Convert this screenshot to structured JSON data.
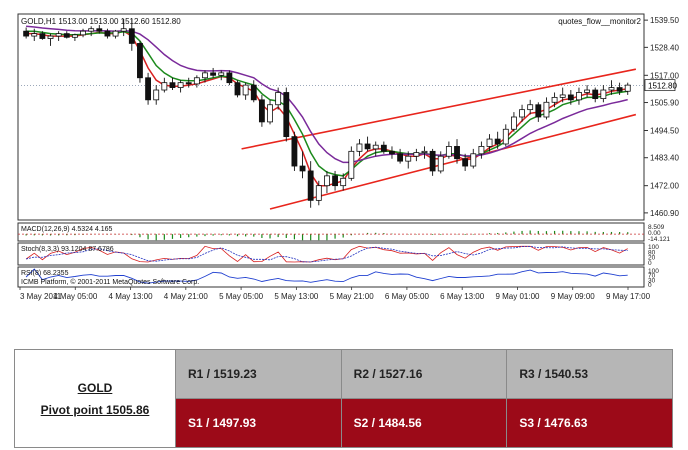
{
  "chart_data": {
    "type": "candlestick",
    "header": "GOLD,H1  1513.00 1513.00 1512.60 1512.80",
    "watermark": "quotes_flow__monitor2",
    "price_axis": {
      "ticks": [
        "1539.50",
        "1528.40",
        "1517.00",
        "1505.90",
        "1494.50",
        "1483.40",
        "1472.00",
        "1460.90"
      ],
      "ylim": [
        1458,
        1542
      ],
      "current_price_label": "1512.80",
      "current_price": 1512.8
    },
    "time_axis": [
      "3 May 2011",
      "4 May 05:00",
      "4 May 13:00",
      "4 May 21:00",
      "5 May 05:00",
      "5 May 13:00",
      "5 May 21:00",
      "6 May 05:00",
      "6 May 13:00",
      "9 May 01:00",
      "9 May 09:00",
      "9 May 17:00"
    ],
    "candles": [
      [
        1535,
        1536.5,
        1532,
        1533
      ],
      [
        1533,
        1536,
        1531,
        1534
      ],
      [
        1534,
        1535,
        1531.5,
        1532
      ],
      [
        1532,
        1534,
        1529,
        1533
      ],
      [
        1533,
        1535,
        1531,
        1534
      ],
      [
        1534,
        1535,
        1532,
        1532.5
      ],
      [
        1532.5,
        1534,
        1531,
        1533.5
      ],
      [
        1533.5,
        1536,
        1532.5,
        1535
      ],
      [
        1535,
        1537,
        1533,
        1536
      ],
      [
        1536,
        1537.5,
        1534,
        1535
      ],
      [
        1535,
        1536,
        1532,
        1533
      ],
      [
        1533,
        1535.5,
        1532,
        1535
      ],
      [
        1535,
        1540,
        1533,
        1536
      ],
      [
        1536,
        1540,
        1527,
        1530
      ],
      [
        1530,
        1531,
        1514,
        1516
      ],
      [
        1516,
        1518,
        1505,
        1507
      ],
      [
        1507,
        1513,
        1505,
        1511
      ],
      [
        1511,
        1516,
        1510,
        1514
      ],
      [
        1514,
        1516,
        1511,
        1512
      ],
      [
        1512,
        1515,
        1510,
        1514
      ],
      [
        1514,
        1516,
        1512,
        1513.5
      ],
      [
        1513.5,
        1517,
        1512,
        1516
      ],
      [
        1516,
        1519,
        1514,
        1518
      ],
      [
        1518,
        1520,
        1516,
        1517
      ],
      [
        1517,
        1519,
        1515,
        1518
      ],
      [
        1518,
        1519,
        1513,
        1514
      ],
      [
        1514,
        1515,
        1508,
        1509
      ],
      [
        1509,
        1514,
        1507,
        1513
      ],
      [
        1513,
        1515,
        1506,
        1507
      ],
      [
        1507,
        1509,
        1496,
        1498
      ],
      [
        1498,
        1507,
        1497,
        1505
      ],
      [
        1505,
        1512,
        1503,
        1510
      ],
      [
        1510,
        1512,
        1490,
        1492
      ],
      [
        1492,
        1494,
        1478,
        1480
      ],
      [
        1480,
        1486,
        1475,
        1478
      ],
      [
        1478,
        1482,
        1463,
        1466
      ],
      [
        1466,
        1474,
        1464,
        1472
      ],
      [
        1472,
        1478,
        1469,
        1476
      ],
      [
        1476,
        1478,
        1470,
        1472
      ],
      [
        1472,
        1477,
        1470,
        1475
      ],
      [
        1475,
        1488,
        1474,
        1486
      ],
      [
        1486,
        1491,
        1484,
        1489
      ],
      [
        1489,
        1492,
        1486,
        1487
      ],
      [
        1487,
        1490,
        1484,
        1488.5
      ],
      [
        1488.5,
        1490,
        1485,
        1486
      ],
      [
        1486,
        1488,
        1483,
        1485
      ],
      [
        1485,
        1487,
        1481,
        1482
      ],
      [
        1482,
        1486,
        1479,
        1484
      ],
      [
        1484,
        1487,
        1482,
        1485.5
      ],
      [
        1485.5,
        1488,
        1483,
        1486
      ],
      [
        1486,
        1487,
        1476,
        1478
      ],
      [
        1478,
        1486,
        1477,
        1484
      ],
      [
        1484,
        1490,
        1483,
        1488
      ],
      [
        1488,
        1491,
        1481,
        1483
      ],
      [
        1483,
        1485,
        1478,
        1480
      ],
      [
        1480,
        1487,
        1479,
        1485
      ],
      [
        1485,
        1490,
        1483,
        1488
      ],
      [
        1488,
        1493,
        1486,
        1491
      ],
      [
        1491,
        1494,
        1487,
        1489
      ],
      [
        1489,
        1497,
        1488,
        1495
      ],
      [
        1495,
        1502,
        1494,
        1500
      ],
      [
        1500,
        1505,
        1498,
        1503
      ],
      [
        1503,
        1507,
        1501,
        1505
      ],
      [
        1505,
        1506,
        1498,
        1500
      ],
      [
        1500,
        1508,
        1499,
        1506
      ],
      [
        1506,
        1510,
        1504,
        1508
      ],
      [
        1508,
        1512,
        1506,
        1509
      ],
      [
        1509,
        1511,
        1505,
        1507
      ],
      [
        1507,
        1512,
        1505,
        1510
      ],
      [
        1510,
        1513,
        1508,
        1511
      ],
      [
        1511,
        1512,
        1506,
        1507.5
      ],
      [
        1507.5,
        1513,
        1506,
        1511
      ],
      [
        1511,
        1515,
        1509,
        1512
      ],
      [
        1512,
        1514,
        1509,
        1510.5
      ],
      [
        1510.5,
        1514,
        1509,
        1513
      ]
    ],
    "moving_averages": [
      {
        "color": "#d82020",
        "values": [
          1534,
          1534,
          1533.5,
          1533,
          1533,
          1533,
          1533,
          1533.5,
          1534,
          1534.5,
          1534,
          1534,
          1535,
          1533,
          1527,
          1520,
          1515,
          1513,
          1512.5,
          1512.5,
          1513,
          1513.5,
          1514.5,
          1515.5,
          1516.5,
          1516,
          1513.5,
          1512,
          1510.5,
          1505,
          1502,
          1504,
          1500,
          1493,
          1486,
          1477,
          1472,
          1472,
          1473,
          1474,
          1479,
          1483,
          1486,
          1487,
          1487,
          1486,
          1485,
          1484,
          1484,
          1485,
          1483,
          1483,
          1484.5,
          1484,
          1482.5,
          1483,
          1485,
          1487.5,
          1489,
          1491.5,
          1495,
          1498.5,
          1501.5,
          1502,
          1503,
          1505,
          1507,
          1507.5,
          1508.5,
          1509.5,
          1509,
          1509.5,
          1510.5,
          1511,
          1511.5
        ]
      },
      {
        "color": "#1c8a1c",
        "values": [
          1535,
          1535,
          1534.5,
          1534,
          1533.8,
          1533.6,
          1533.5,
          1533.7,
          1534,
          1534.3,
          1534.2,
          1534.3,
          1534.8,
          1534.2,
          1531,
          1526,
          1521,
          1518,
          1516,
          1515,
          1514.8,
          1514.8,
          1515.3,
          1516,
          1516.6,
          1516.4,
          1515,
          1514,
          1513,
          1509.5,
          1507,
          1506.5,
          1504.5,
          1499,
          1493,
          1485.5,
          1480,
          1477.5,
          1476.5,
          1476,
          1478.5,
          1481.5,
          1484,
          1485.5,
          1486,
          1486,
          1485.5,
          1485,
          1485,
          1485.2,
          1484.5,
          1484.3,
          1485,
          1485,
          1484,
          1484,
          1485,
          1486.5,
          1488,
          1490,
          1493,
          1496,
          1499,
          1500.5,
          1501.5,
          1503,
          1505,
          1506,
          1507,
          1508,
          1508,
          1508.5,
          1509.5,
          1510,
          1510.5
        ]
      },
      {
        "color": "#7a2a9a",
        "values": [
          1537,
          1536.7,
          1536.3,
          1536,
          1535.7,
          1535.4,
          1535.2,
          1535.1,
          1535.1,
          1535.2,
          1535.1,
          1535,
          1535.2,
          1535,
          1533.8,
          1531.5,
          1528.5,
          1525.5,
          1523,
          1521,
          1519.8,
          1519,
          1518.8,
          1518.8,
          1518.9,
          1518.8,
          1518,
          1517,
          1516,
          1513.5,
          1511.5,
          1510.5,
          1508.5,
          1504.5,
          1500,
          1494,
          1489,
          1485.5,
          1483,
          1481.5,
          1481.5,
          1482.3,
          1483.2,
          1484,
          1484.5,
          1484.8,
          1484.9,
          1484.8,
          1484.8,
          1484.9,
          1484.6,
          1484.4,
          1484.6,
          1484.6,
          1484.2,
          1484.1,
          1484.5,
          1485.3,
          1486.3,
          1487.6,
          1489.3,
          1491.3,
          1493.3,
          1494.9,
          1496.3,
          1497.8,
          1499.4,
          1500.7,
          1502,
          1503.2,
          1503.9,
          1504.7,
          1505.6,
          1506.3,
          1507.1
        ]
      }
    ],
    "trend_channel": {
      "color": "#e8251c",
      "upper": [
        [
          26.5,
          1487
        ],
        [
          75,
          1519.5
        ]
      ],
      "lower": [
        [
          30,
          1462.5
        ],
        [
          75,
          1501
        ]
      ]
    },
    "indicators": {
      "macd_label": "MACD(12,26,9) 4.5324 4.165",
      "macd_scale": [
        "8.509",
        "0.00",
        "-14.121"
      ],
      "stoch_label": "Stoch(8,3,3) 93.1204 87.6786",
      "stoch_scale": [
        "100",
        "80",
        "20",
        "0"
      ],
      "rsi_label": "RSI(8) 68.2355",
      "rsi_scale": [
        "100",
        "70",
        "30",
        "0"
      ],
      "copyright": "ICMB Platform, © 2001-2011 MetaQuotes Software Corp."
    }
  },
  "pivot_table": {
    "instrument": "GOLD",
    "pivot": "Pivot point 1505.86",
    "resistance": [
      "R1 / 1519.23",
      "R2 / 1527.16",
      "R3 / 1540.53"
    ],
    "support": [
      "S1 / 1497.93",
      "S2 / 1484.56",
      "S3 / 1476.63"
    ],
    "colors": {
      "resistance_bg": "#b6b6b6",
      "support_bg": "#9c0a18",
      "support_text": "#ffffff"
    }
  }
}
